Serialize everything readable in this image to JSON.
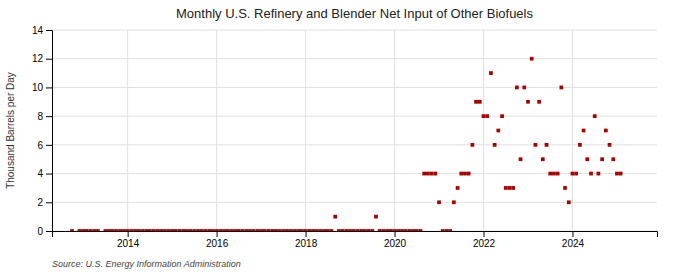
{
  "chart_data": {
    "type": "scatter",
    "title": "Monthly U.S. Refinery and Blender Net Input of Other Biofuels",
    "ylabel": "Thousand Barrels per Day",
    "annotations": [
      "Source: U.S. Energy Information Administration"
    ],
    "color": "#aa0000",
    "marker": "square",
    "grid": true,
    "xlim": [
      2012.3,
      2025.9
    ],
    "xticks": [
      2014,
      2016,
      2018,
      2020,
      2022,
      2024
    ],
    "ylim": [
      0,
      14
    ],
    "yticks": [
      0,
      2,
      4,
      6,
      8,
      10,
      12,
      14
    ],
    "x": [
      2012.75,
      2012.917,
      2013.0,
      2013.083,
      2013.167,
      2013.25,
      2013.333,
      2013.5,
      2013.583,
      2013.667,
      2013.75,
      2013.833,
      2013.917,
      2014.0,
      2014.083,
      2014.167,
      2014.25,
      2014.333,
      2014.417,
      2014.5,
      2014.583,
      2014.667,
      2014.75,
      2014.833,
      2014.917,
      2015.0,
      2015.083,
      2015.167,
      2015.25,
      2015.333,
      2015.417,
      2015.5,
      2015.583,
      2015.667,
      2015.75,
      2015.833,
      2015.917,
      2016.0,
      2016.083,
      2016.167,
      2016.25,
      2016.333,
      2016.417,
      2016.5,
      2016.583,
      2016.667,
      2016.75,
      2016.833,
      2016.917,
      2017.0,
      2017.083,
      2017.167,
      2017.25,
      2017.333,
      2017.417,
      2017.5,
      2017.583,
      2017.667,
      2017.75,
      2017.833,
      2017.917,
      2018.0,
      2018.083,
      2018.167,
      2018.25,
      2018.333,
      2018.417,
      2018.5,
      2018.583,
      2018.667,
      2018.75,
      2018.833,
      2018.917,
      2019.0,
      2019.083,
      2019.167,
      2019.25,
      2019.333,
      2019.417,
      2019.5,
      2019.583,
      2019.667,
      2019.75,
      2019.833,
      2019.917,
      2020.0,
      2020.083,
      2020.167,
      2020.25,
      2020.333,
      2020.417,
      2020.5,
      2020.583,
      2020.667,
      2020.75,
      2020.833,
      2020.917,
      2021.0,
      2021.083,
      2021.167,
      2021.25,
      2021.333,
      2021.417,
      2021.5,
      2021.583,
      2021.667,
      2021.75,
      2021.833,
      2021.917,
      2022.0,
      2022.083,
      2022.167,
      2022.25,
      2022.333,
      2022.417,
      2022.5,
      2022.583,
      2022.667,
      2022.75,
      2022.833,
      2022.917,
      2023.0,
      2023.083,
      2023.167,
      2023.25,
      2023.333,
      2023.417,
      2023.5,
      2023.583,
      2023.667,
      2023.75,
      2023.833,
      2023.917,
      2024.0,
      2024.083,
      2024.167,
      2024.25,
      2024.333,
      2024.417,
      2024.5,
      2024.583,
      2024.667,
      2024.75,
      2024.833,
      2024.917,
      2025.0,
      2025.083
    ],
    "values": [
      0,
      0,
      0,
      0,
      0,
      0,
      0,
      0,
      0,
      0,
      0,
      0,
      0,
      0,
      0,
      0,
      0,
      0,
      0,
      0,
      0,
      0,
      0,
      0,
      0,
      0,
      0,
      0,
      0,
      0,
      0,
      0,
      0,
      0,
      0,
      0,
      0,
      0,
      0,
      0,
      0,
      0,
      0,
      0,
      0,
      0,
      0,
      0,
      0,
      0,
      0,
      0,
      0,
      0,
      0,
      0,
      0,
      0,
      0,
      0,
      0,
      0,
      0,
      0,
      0,
      0,
      0,
      0,
      0,
      1,
      0,
      0,
      0,
      0,
      0,
      0,
      0,
      0,
      0,
      0,
      1,
      0,
      0,
      0,
      0,
      0,
      0,
      0,
      0,
      0,
      0,
      0,
      0,
      4,
      4,
      4,
      4,
      2,
      0,
      0,
      0,
      2,
      3,
      4,
      4,
      4,
      6,
      9,
      9,
      8,
      8,
      11,
      6,
      7,
      8,
      3,
      3,
      3,
      10,
      5,
      10,
      9,
      12,
      6,
      9,
      5,
      6,
      4,
      4,
      4,
      10,
      3,
      2,
      4,
      4,
      6,
      7,
      5,
      4,
      8,
      4,
      5,
      7,
      6,
      5,
      4,
      4
    ]
  }
}
